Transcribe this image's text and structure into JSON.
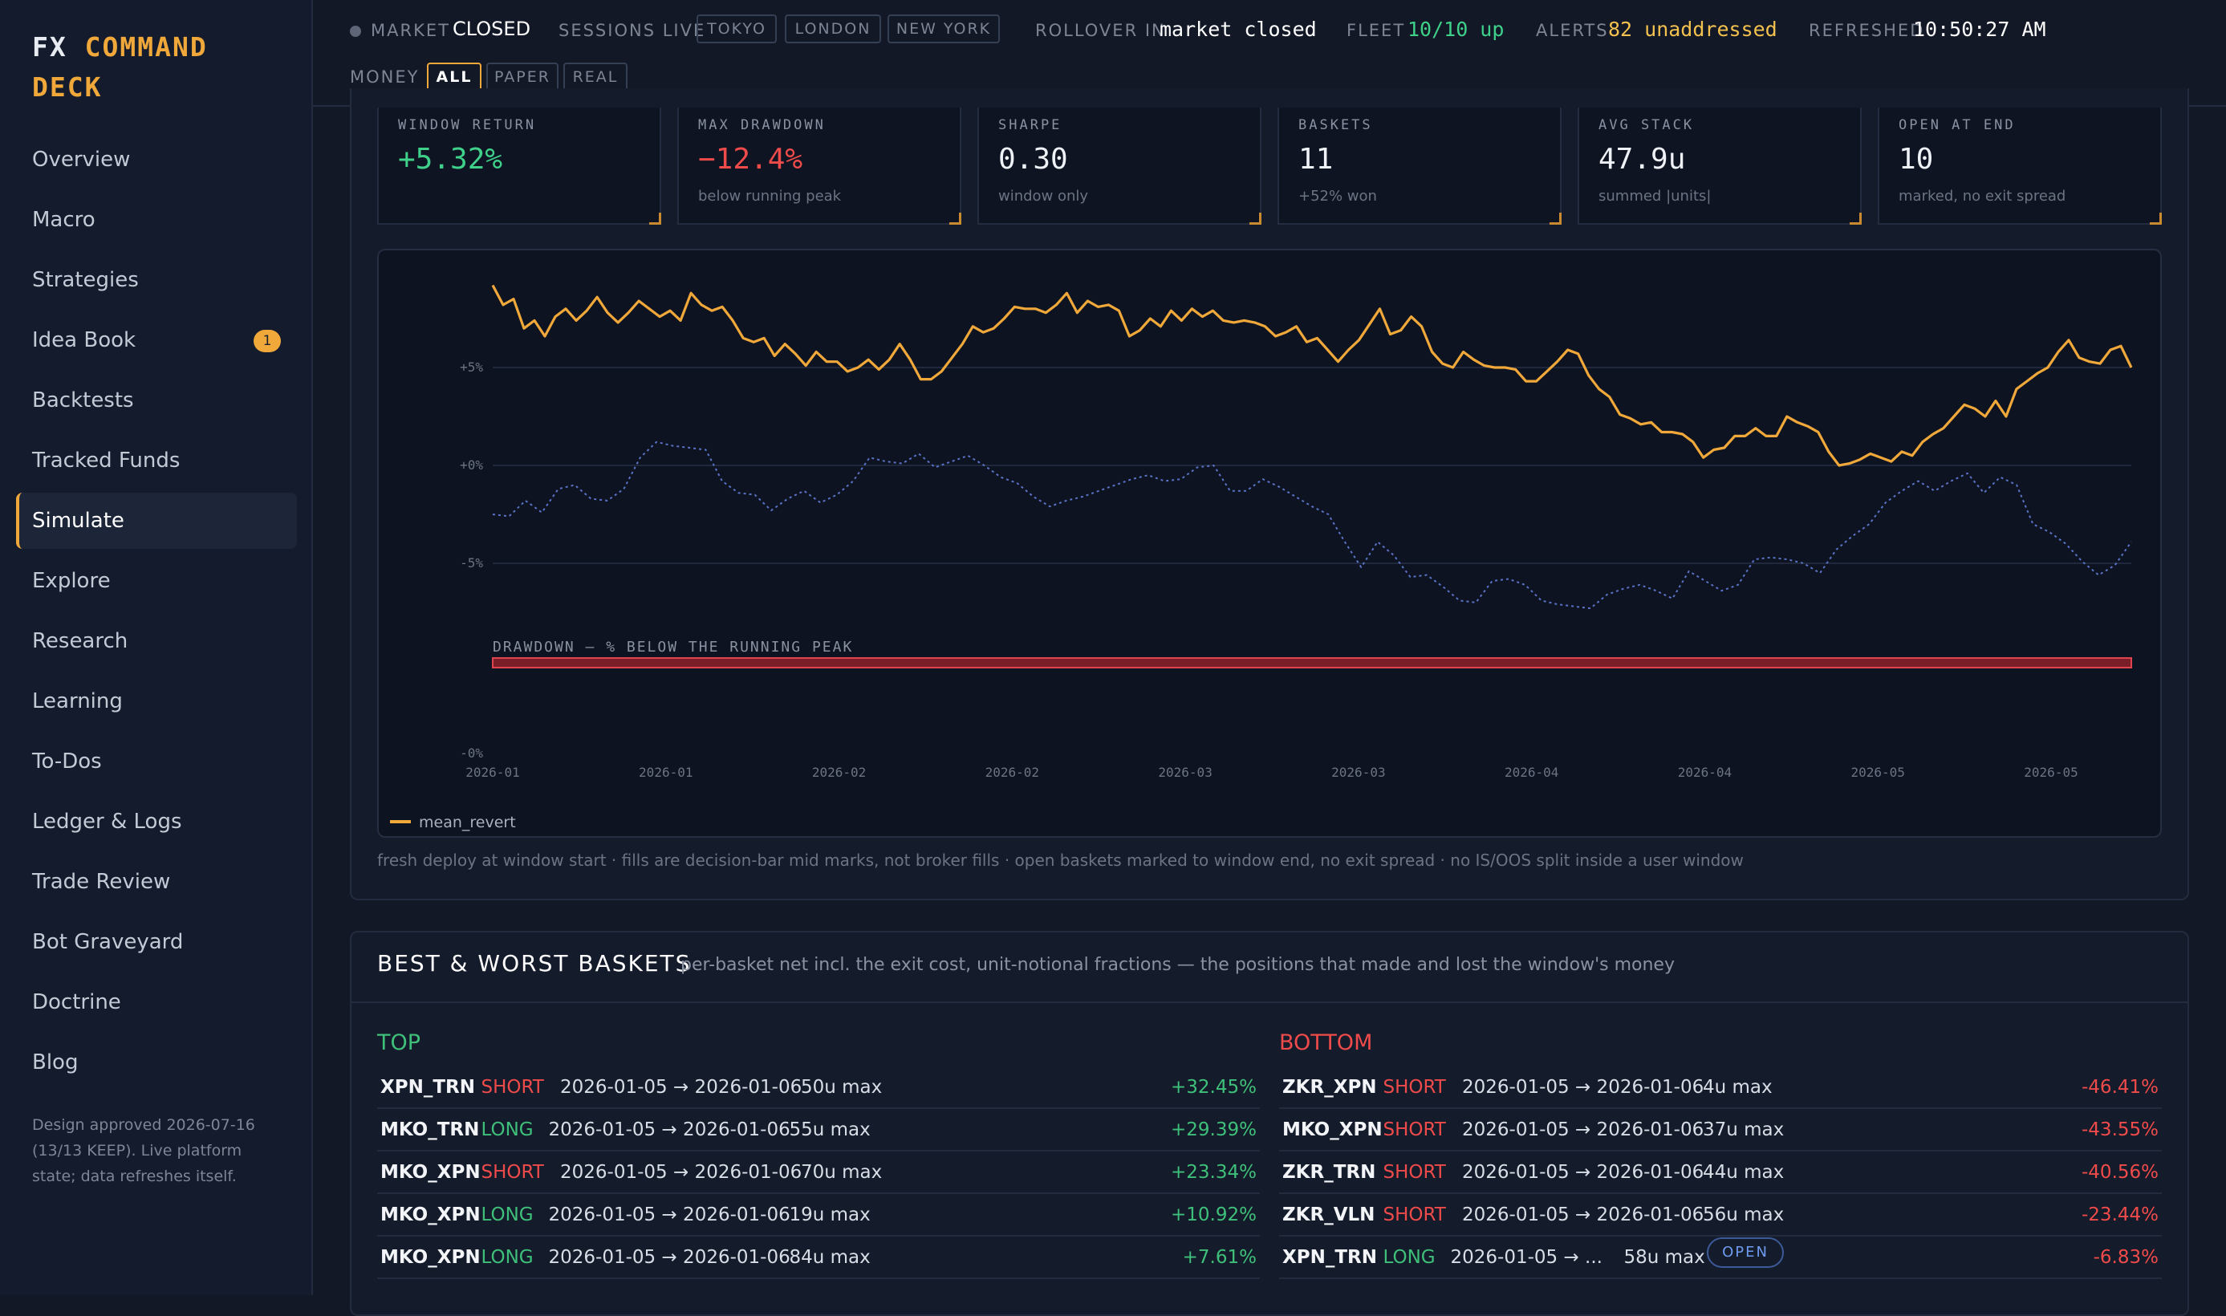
{
  "brand": {
    "part1": "FX",
    "part2": "COMMAND",
    "part3": "DECK"
  },
  "sidebar": {
    "items": [
      {
        "label": "Overview"
      },
      {
        "label": "Macro"
      },
      {
        "label": "Strategies"
      },
      {
        "label": "Idea Book",
        "badge": "1"
      },
      {
        "label": "Backtests"
      },
      {
        "label": "Tracked Funds"
      },
      {
        "label": "Simulate",
        "active": true
      },
      {
        "label": "Explore"
      },
      {
        "label": "Research"
      },
      {
        "label": "Learning"
      },
      {
        "label": "To-Dos"
      },
      {
        "label": "Ledger & Logs"
      },
      {
        "label": "Trade Review"
      },
      {
        "label": "Bot Graveyard"
      },
      {
        "label": "Doctrine"
      },
      {
        "label": "Blog"
      }
    ],
    "footer": "Design approved 2026-07-16 (13/13 KEEP). Live platform state; data refreshes itself."
  },
  "topbar": {
    "market_label": "MARKET",
    "market_value": "CLOSED",
    "sessions_label": "SESSIONS LIVE",
    "sessions": [
      "TOKYO",
      "LONDON",
      "NEW YORK"
    ],
    "rollover_label": "ROLLOVER IN",
    "rollover_value": "market closed",
    "fleet_label": "FLEET",
    "fleet_value": "10/10 up",
    "alerts_label": "ALERTS",
    "alerts_value": "82 unaddressed",
    "refreshed_label": "REFRESHED",
    "refreshed_value": "10:50:27 AM",
    "money_label": "MONEY",
    "money_options": [
      "ALL",
      "PAPER",
      "REAL"
    ],
    "money_selected": "ALL",
    "colors": {
      "fleet": "#3fd08a",
      "alerts": "#f2c14e"
    }
  },
  "kpis": [
    {
      "label": "WINDOW RETURN",
      "value": "+5.32%",
      "sub": "",
      "color": "#3fd08a"
    },
    {
      "label": "MAX DRAWDOWN",
      "value": "−12.4%",
      "sub": "below running peak",
      "color": "#ef4b4b"
    },
    {
      "label": "SHARPE",
      "value": "0.30",
      "sub": "window only",
      "color": "#eef1f6"
    },
    {
      "label": "BASKETS",
      "value": "11",
      "sub": "+52% won",
      "color": "#eef1f6"
    },
    {
      "label": "AVG STACK",
      "value": "47.9u",
      "sub": "summed |units|",
      "color": "#eef1f6"
    },
    {
      "label": "OPEN AT END",
      "value": "10",
      "sub": "marked, no exit spread",
      "color": "#eef1f6"
    }
  ],
  "chart_data": {
    "type": "line",
    "y_ticks": [
      "+5%",
      "+0%",
      "-5%"
    ],
    "y_ticks_values": [
      5,
      0,
      -5
    ],
    "ylim": [
      -10,
      10
    ],
    "x_ticks": [
      "2026-01",
      "2026-01",
      "2026-02",
      "2026-02",
      "2026-03",
      "2026-03",
      "2026-04",
      "2026-04",
      "2026-05",
      "2026-05"
    ],
    "series": [
      {
        "name": "mean_revert",
        "color": "#f0a83a",
        "style": "solid",
        "values": [
          9.2,
          8.2,
          8.5,
          7.0,
          7.4,
          6.6,
          7.6,
          8.0,
          7.4,
          7.9,
          8.6,
          7.8,
          7.3,
          7.8,
          8.4,
          8.0,
          7.6,
          7.9,
          7.4,
          8.8,
          8.2,
          7.9,
          8.1,
          7.4,
          6.5,
          6.3,
          6.5,
          5.6,
          6.2,
          5.7,
          5.1,
          5.8,
          5.3,
          5.3,
          4.8,
          5.0,
          5.4,
          4.9,
          5.4,
          6.2,
          5.4,
          4.4,
          4.4,
          4.8,
          5.5,
          6.2,
          7.1,
          6.8,
          7.0,
          7.5,
          8.1,
          8.0,
          8.0,
          7.8,
          8.2,
          8.8,
          7.8,
          8.4,
          8.1,
          8.2,
          7.9,
          6.6,
          6.9,
          7.5,
          7.1,
          7.9,
          7.4,
          8.0,
          7.6,
          7.9,
          7.4,
          7.3,
          7.4,
          7.3,
          7.1,
          6.6,
          6.8,
          7.1,
          6.3,
          6.5,
          5.9,
          5.3,
          5.9,
          6.4,
          7.2,
          8.0,
          6.7,
          6.9,
          7.6,
          7.1,
          5.8,
          5.2,
          5.0,
          5.8,
          5.4,
          5.1,
          5.0,
          5.0,
          4.9,
          4.3,
          4.3,
          4.8,
          5.3,
          5.9,
          5.7,
          4.6,
          3.9,
          3.5,
          2.6,
          2.4,
          2.1,
          2.2,
          1.7,
          1.7,
          1.6,
          1.2,
          0.4,
          0.8,
          0.9,
          1.5,
          1.5,
          1.9,
          1.5,
          1.5,
          2.5,
          2.2,
          2.0,
          1.7,
          0.7,
          0.0,
          0.1,
          0.3,
          0.6,
          0.4,
          0.2,
          0.7,
          0.5,
          1.2,
          1.6,
          1.9,
          2.5,
          3.1,
          2.9,
          2.5,
          3.3,
          2.5,
          3.9,
          4.3,
          4.7,
          5.0,
          5.8,
          6.4,
          5.5,
          5.3,
          5.2,
          5.9,
          6.1,
          5.0
        ]
      },
      {
        "name": "",
        "color": "#5a73c8",
        "style": "dotted",
        "values": [
          -2.5,
          -2.6,
          -1.8,
          -2.4,
          -1.2,
          -1.0,
          -1.7,
          -1.8,
          -1.2,
          0.4,
          1.2,
          1.0,
          0.9,
          0.8,
          -0.8,
          -1.4,
          -1.5,
          -2.3,
          -1.7,
          -1.3,
          -1.9,
          -1.5,
          -0.8,
          0.4,
          0.2,
          0.1,
          0.6,
          -0.1,
          0.2,
          0.5,
          0.0,
          -0.6,
          -0.9,
          -1.6,
          -2.1,
          -1.8,
          -1.6,
          -1.3,
          -1.0,
          -0.7,
          -0.5,
          -0.8,
          -0.7,
          -0.1,
          0.0,
          -1.3,
          -1.3,
          -0.7,
          -1.1,
          -1.6,
          -2.1,
          -2.5,
          -3.9,
          -5.2,
          -3.9,
          -4.6,
          -5.7,
          -5.6,
          -6.2,
          -6.9,
          -7.0,
          -5.9,
          -5.8,
          -6.1,
          -6.9,
          -7.1,
          -7.2,
          -7.3,
          -6.6,
          -6.3,
          -6.1,
          -6.4,
          -6.8,
          -5.4,
          -5.9,
          -6.4,
          -6.1,
          -4.8,
          -4.7,
          -4.8,
          -5.0,
          -5.5,
          -4.3,
          -3.6,
          -3.0,
          -1.9,
          -1.3,
          -0.8,
          -1.3,
          -0.8,
          -0.4,
          -1.4,
          -0.6,
          -1.0,
          -3.0,
          -3.4,
          -4.0,
          -4.9,
          -5.6,
          -5.1,
          -3.9
        ]
      }
    ],
    "drawdown_label": "DRAWDOWN — % BELOW THE RUNNING PEAK",
    "drawdown_tick": "-0%",
    "legend": "mean_revert"
  },
  "note": "fresh deploy at window start · fills are decision-bar mid marks, not broker fills · open baskets marked to window end, no exit spread · no IS/OOS split inside a user window",
  "best_worst": {
    "title": "BEST & WORST BASKETS",
    "subtitle": "per-basket net incl. the exit cost, unit-notional fractions — the positions that made and lost the window's money",
    "top_label": "TOP",
    "bottom_label": "BOTTOM",
    "top": [
      {
        "sym": "XPN_TRN",
        "side": "SHORT",
        "dates": "2026-01-05 → 2026-01-06",
        "max": "50u max",
        "pct": "+32.45%"
      },
      {
        "sym": "MKO_TRN",
        "side": "LONG",
        "dates": "2026-01-05 → 2026-01-06",
        "max": "55u max",
        "pct": "+29.39%"
      },
      {
        "sym": "MKO_XPN",
        "side": "SHORT",
        "dates": "2026-01-05 → 2026-01-06",
        "max": "70u max",
        "pct": "+23.34%"
      },
      {
        "sym": "MKO_XPN",
        "side": "LONG",
        "dates": "2026-01-05 → 2026-01-06",
        "max": "19u max",
        "pct": "+10.92%"
      },
      {
        "sym": "MKO_XPN",
        "side": "LONG",
        "dates": "2026-01-05 → 2026-01-06",
        "max": "84u max",
        "pct": "+7.61%"
      }
    ],
    "bottom": [
      {
        "sym": "ZKR_XPN",
        "side": "SHORT",
        "dates": "2026-01-05 → 2026-01-06",
        "max": "4u max",
        "pct": "-46.41%"
      },
      {
        "sym": "MKO_XPN",
        "side": "SHORT",
        "dates": "2026-01-05 → 2026-01-06",
        "max": "37u max",
        "pct": "-43.55%"
      },
      {
        "sym": "ZKR_TRN",
        "side": "SHORT",
        "dates": "2026-01-05 → 2026-01-06",
        "max": "44u max",
        "pct": "-40.56%"
      },
      {
        "sym": "ZKR_VLN",
        "side": "SHORT",
        "dates": "2026-01-05 → 2026-01-06",
        "max": "56u max",
        "pct": "-23.44%"
      },
      {
        "sym": "XPN_TRN",
        "side": "LONG",
        "dates": "2026-01-05 → ...",
        "max": "58u max",
        "pct": "-6.83%",
        "badge": "OPEN"
      }
    ]
  }
}
